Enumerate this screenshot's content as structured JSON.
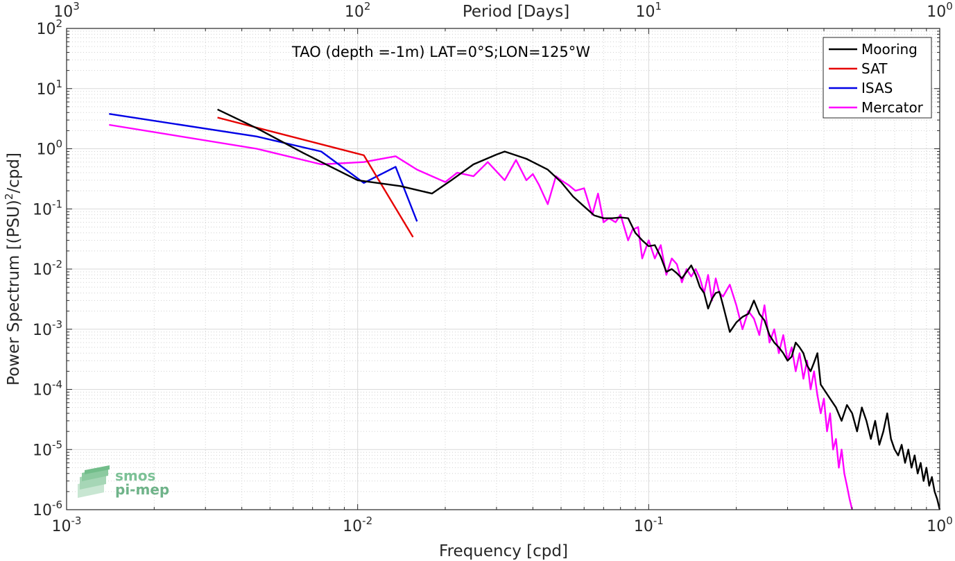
{
  "chart_data": {
    "type": "line",
    "title": "TAO (depth =-1m) LAT=0°S;LON=125°W",
    "xlabel": "Frequency [cpd]",
    "ylabel": "Power Spectrum [(PSU)²/cpd]",
    "ylabel_parts": {
      "base": "Power Spectrum [(PSU)",
      "sup": "2",
      "tail": "/cpd]"
    },
    "top_xlabel": "Period [Days]",
    "x_scale": "log",
    "y_scale": "log",
    "xlim": [
      0.001,
      1
    ],
    "ylim": [
      1e-06,
      100
    ],
    "x_ticks": [
      {
        "value": 0.001,
        "base": "10",
        "exp": "-3"
      },
      {
        "value": 0.01,
        "base": "10",
        "exp": "-2"
      },
      {
        "value": 0.1,
        "base": "10",
        "exp": "-1"
      },
      {
        "value": 1,
        "base": "10",
        "exp": "0"
      }
    ],
    "y_ticks": [
      {
        "value": 1e-06,
        "base": "10",
        "exp": "-6"
      },
      {
        "value": 1e-05,
        "base": "10",
        "exp": "-5"
      },
      {
        "value": 0.0001,
        "base": "10",
        "exp": "-4"
      },
      {
        "value": 0.001,
        "base": "10",
        "exp": "-3"
      },
      {
        "value": 0.01,
        "base": "10",
        "exp": "-2"
      },
      {
        "value": 0.1,
        "base": "10",
        "exp": "-1"
      },
      {
        "value": 1,
        "base": "10",
        "exp": "0"
      },
      {
        "value": 10,
        "base": "10",
        "exp": "1"
      },
      {
        "value": 100,
        "base": "10",
        "exp": "2"
      }
    ],
    "top_ticks": [
      {
        "value": 0.001,
        "base": "10",
        "exp": "3"
      },
      {
        "value": 0.01,
        "base": "10",
        "exp": "2"
      },
      {
        "value": 0.1,
        "base": "10",
        "exp": "1"
      },
      {
        "value": 1,
        "base": "10",
        "exp": "0"
      }
    ],
    "grid": true,
    "legend_position": "top-right",
    "series": [
      {
        "name": "Mooring",
        "color": "#000000",
        "x": [
          0.0033,
          0.0045,
          0.0065,
          0.01,
          0.014,
          0.018,
          0.021,
          0.025,
          0.03,
          0.032,
          0.038,
          0.045,
          0.05,
          0.055,
          0.06,
          0.065,
          0.07,
          0.075,
          0.08,
          0.085,
          0.09,
          0.095,
          0.1,
          0.105,
          0.11,
          0.115,
          0.12,
          0.125,
          0.13,
          0.135,
          0.14,
          0.145,
          0.15,
          0.155,
          0.16,
          0.165,
          0.17,
          0.175,
          0.18,
          0.19,
          0.2,
          0.21,
          0.22,
          0.23,
          0.24,
          0.25,
          0.26,
          0.27,
          0.28,
          0.29,
          0.3,
          0.31,
          0.32,
          0.33,
          0.34,
          0.35,
          0.36,
          0.37,
          0.38,
          0.39,
          0.4,
          0.42,
          0.44,
          0.46,
          0.48,
          0.5,
          0.52,
          0.54,
          0.56,
          0.58,
          0.6,
          0.62,
          0.64,
          0.66,
          0.68,
          0.7,
          0.72,
          0.74,
          0.76,
          0.78,
          0.8,
          0.82,
          0.84,
          0.86,
          0.88,
          0.9,
          0.92,
          0.94,
          0.96,
          0.98,
          1.0
        ],
        "y": [
          4.5,
          2.2,
          0.85,
          0.3,
          0.24,
          0.18,
          0.3,
          0.55,
          0.8,
          0.9,
          0.68,
          0.45,
          0.28,
          0.16,
          0.11,
          0.078,
          0.07,
          0.07,
          0.072,
          0.07,
          0.04,
          0.03,
          0.024,
          0.025,
          0.016,
          0.009,
          0.01,
          0.0085,
          0.007,
          0.009,
          0.0115,
          0.008,
          0.005,
          0.004,
          0.0022,
          0.0032,
          0.004,
          0.0042,
          0.0025,
          0.0009,
          0.0013,
          0.0016,
          0.0018,
          0.003,
          0.0018,
          0.0014,
          0.0008,
          0.0006,
          0.0005,
          0.0004,
          0.0003,
          0.00035,
          0.0006,
          0.0005,
          0.0004,
          0.00025,
          0.0002,
          0.00028,
          0.0004,
          0.00012,
          0.0001,
          7e-05,
          5e-05,
          3e-05,
          5.5e-05,
          4e-05,
          2e-05,
          5e-05,
          3e-05,
          1.5e-05,
          3e-05,
          1.2e-05,
          2e-05,
          4e-05,
          1.5e-05,
          1e-05,
          8e-06,
          1.2e-05,
          6e-06,
          1e-05,
          5e-06,
          8e-06,
          4e-06,
          6e-06,
          3e-06,
          5e-06,
          2.5e-06,
          3.5e-06,
          2e-06,
          1.5e-06,
          1e-06
        ]
      },
      {
        "name": "SAT",
        "color": "#e60000",
        "x": [
          0.0033,
          0.0105,
          0.0155
        ],
        "y": [
          3.3,
          0.78,
          0.034
        ]
      },
      {
        "name": "ISAS",
        "color": "#0000e6",
        "x": [
          0.0014,
          0.0045,
          0.0075,
          0.0105,
          0.0135,
          0.016
        ],
        "y": [
          3.8,
          1.6,
          0.9,
          0.27,
          0.5,
          0.062
        ]
      },
      {
        "name": "Mercator",
        "color": "#ff00ff",
        "x": [
          0.0014,
          0.0045,
          0.0075,
          0.0105,
          0.0135,
          0.016,
          0.018,
          0.02,
          0.022,
          0.025,
          0.028,
          0.032,
          0.035,
          0.038,
          0.04,
          0.042,
          0.045,
          0.048,
          0.05,
          0.053,
          0.056,
          0.06,
          0.064,
          0.067,
          0.07,
          0.073,
          0.077,
          0.08,
          0.085,
          0.088,
          0.092,
          0.095,
          0.1,
          0.105,
          0.11,
          0.115,
          0.12,
          0.125,
          0.13,
          0.135,
          0.14,
          0.145,
          0.15,
          0.155,
          0.16,
          0.165,
          0.17,
          0.175,
          0.18,
          0.19,
          0.2,
          0.21,
          0.22,
          0.23,
          0.24,
          0.25,
          0.26,
          0.27,
          0.28,
          0.29,
          0.3,
          0.31,
          0.32,
          0.33,
          0.34,
          0.35,
          0.36,
          0.37,
          0.38,
          0.39,
          0.4,
          0.41,
          0.42,
          0.43,
          0.44,
          0.45,
          0.46,
          0.47,
          0.48,
          0.49,
          0.5
        ],
        "y": [
          2.5,
          1.0,
          0.55,
          0.6,
          0.75,
          0.45,
          0.35,
          0.28,
          0.4,
          0.35,
          0.6,
          0.3,
          0.65,
          0.3,
          0.38,
          0.25,
          0.12,
          0.35,
          0.3,
          0.25,
          0.2,
          0.22,
          0.08,
          0.18,
          0.06,
          0.07,
          0.06,
          0.08,
          0.03,
          0.045,
          0.05,
          0.015,
          0.03,
          0.015,
          0.025,
          0.008,
          0.015,
          0.012,
          0.006,
          0.01,
          0.0075,
          0.01,
          0.007,
          0.004,
          0.008,
          0.003,
          0.007,
          0.004,
          0.0035,
          0.0055,
          0.0025,
          0.001,
          0.002,
          0.0015,
          0.0008,
          0.0025,
          0.0006,
          0.001,
          0.0004,
          0.0008,
          0.0003,
          0.0005,
          0.0002,
          0.0004,
          0.00015,
          0.0003,
          0.0001,
          0.0002,
          8e-05,
          4e-05,
          7e-05,
          2e-05,
          4e-05,
          1e-05,
          1.5e-05,
          5e-06,
          1e-05,
          4e-06,
          2.5e-06,
          1.5e-06,
          1e-06
        ]
      }
    ]
  },
  "watermark": {
    "line1": "smos",
    "line2": "pi-mep",
    "color": "#5aaa78"
  }
}
